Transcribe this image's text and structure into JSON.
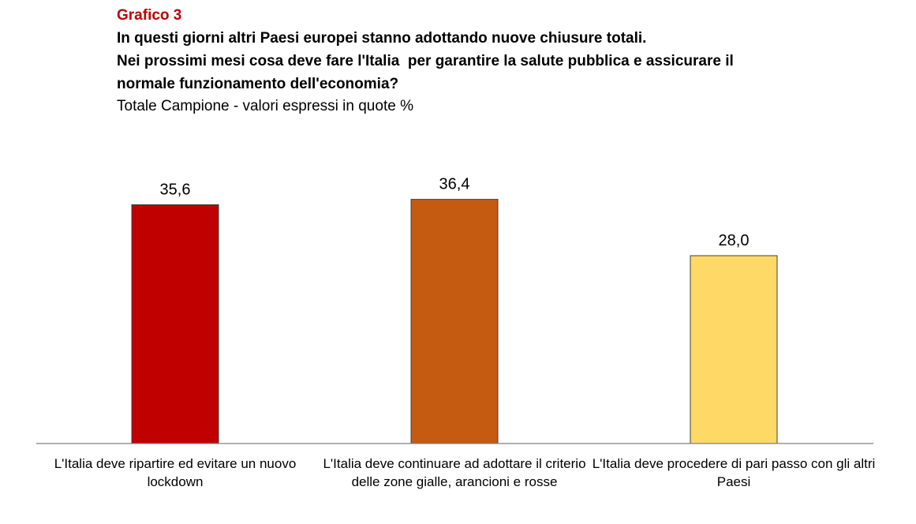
{
  "header": {
    "grafico": "Grafico 3",
    "question_lines": [
      "In questi giorni altri Paesi europei stanno adottando nuove chiusure totali.",
      "Nei prossimi mesi cosa deve fare l'Italia  per garantire la salute pubblica e assicurare il",
      "normale funzionamento dell'economia?"
    ],
    "subtitle": "Totale Campione - valori espressi in quote %"
  },
  "chart_data": {
    "type": "bar",
    "title": "In questi giorni altri Paesi europei stanno adottando nuove chiusure totali. Nei prossimi mesi cosa deve fare l'Italia  per garantire la salute pubblica e assicurare il normale funzionamento dell'economia?",
    "subtitle": "Totale Campione - valori espressi in quote %",
    "categories": [
      "L'Italia deve ripartire ed evitare un nuovo lockdown",
      "L'Italia deve continuare ad adottare il criterio delle zone gialle, arancioni e rosse",
      "L'Italia deve procedere di pari passo con gli altri Paesi"
    ],
    "values": [
      35.6,
      36.4,
      28.0
    ],
    "value_labels": [
      "35,6",
      "36,4",
      "28,0"
    ],
    "colors": [
      "#c00000",
      "#c55a11",
      "#ffd966"
    ],
    "ylim": [
      0,
      40
    ],
    "grid": false,
    "legend": "none",
    "xlabel": "",
    "ylabel": ""
  }
}
